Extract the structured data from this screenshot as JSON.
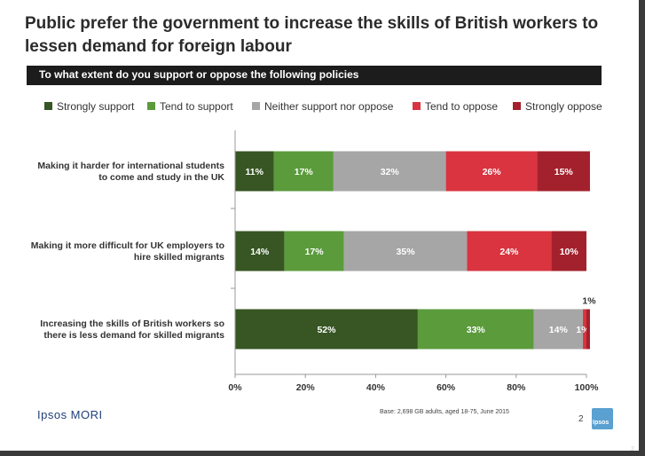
{
  "slide": {
    "title": "Public prefer the government to increase the skills of British workers to lessen demand for foreign labour",
    "subtitle": "To what extent do you support or oppose the following policies",
    "base_note": "Base: 2,698 GB adults, aged 18-75, June 2015",
    "page_number": "2",
    "brand": "Ipsos MORI",
    "logo_text": "Ipsos",
    "corner_number": "2"
  },
  "chart_data": {
    "type": "bar",
    "orientation": "horizontal",
    "stacked": true,
    "categories": [
      "Making it harder for international students to come and study in the UK",
      "Making it more difficult for UK employers to hire skilled migrants",
      "Increasing the skills of British workers so there is less demand for skilled migrants"
    ],
    "series": [
      {
        "name": "Strongly support",
        "color": "#375623",
        "values": [
          11,
          14,
          52
        ]
      },
      {
        "name": "Tend to support",
        "color": "#5b9b3c",
        "values": [
          17,
          17,
          33
        ]
      },
      {
        "name": "Neither support nor oppose",
        "color": "#a6a6a6",
        "values": [
          32,
          35,
          14
        ]
      },
      {
        "name": "Tend to oppose",
        "color": "#d9343f",
        "values": [
          26,
          24,
          1
        ]
      },
      {
        "name": "Strongly oppose",
        "color": "#a3212c",
        "values": [
          15,
          10,
          1
        ]
      }
    ],
    "xlim": [
      0,
      100
    ],
    "xticks": [
      "0%",
      "20%",
      "40%",
      "60%",
      "80%",
      "100%"
    ],
    "legend_position": "top"
  }
}
